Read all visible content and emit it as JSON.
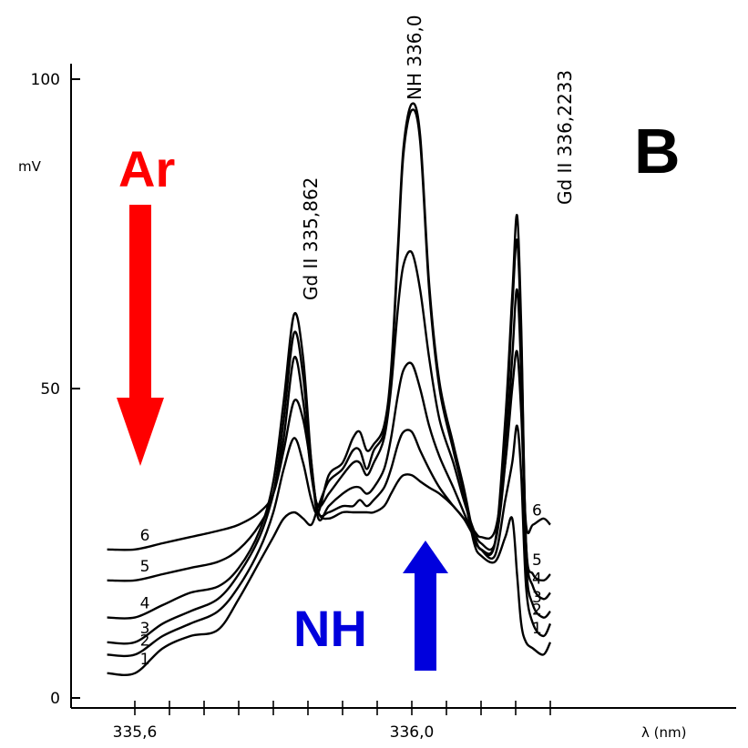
{
  "panel_letter": "B",
  "annotations": {
    "gas_label": "Ar",
    "gas_color": "#ff0000",
    "gas_arrow_direction": "down",
    "radical_label": "NH",
    "radical_color": "#0000dd",
    "radical_arrow_direction": "up"
  },
  "chart_data": {
    "type": "line",
    "title": "",
    "xlabel": "λ (nm)",
    "ylabel": "mV",
    "x_ticks": [
      "335,6",
      "336,0"
    ],
    "y_ticks": [
      "0",
      "50",
      "100"
    ],
    "xlim": [
      335.56,
      336.2
    ],
    "ylim": [
      -2,
      102
    ],
    "grid": false,
    "peak_labels": [
      "Gd II 335,862",
      "NH 336,0",
      "Gd II 336,2233"
    ],
    "series": [
      {
        "name": "1",
        "x": [
          335.56,
          335.6,
          335.64,
          335.68,
          335.72,
          335.75,
          335.78,
          335.8,
          335.815,
          335.83,
          335.843,
          335.855,
          335.865,
          335.88,
          335.9,
          335.915,
          335.925,
          335.935,
          335.945,
          335.96,
          335.97,
          335.98,
          335.988,
          336.0,
          336.012,
          336.025,
          336.04,
          336.06,
          336.075,
          336.09,
          336.1,
          336.12,
          336.135,
          336.145,
          336.152,
          336.158,
          336.165,
          336.175,
          336.19,
          336.2
        ],
        "y": [
          4,
          4,
          8,
          10,
          11,
          16,
          22,
          26,
          29,
          30,
          29,
          28,
          31,
          35,
          37,
          40,
          40,
          37,
          40,
          43,
          52,
          72,
          88,
          95,
          90,
          66,
          50,
          40,
          33,
          25,
          23,
          22,
          26,
          29,
          20,
          12,
          9,
          8,
          7,
          9
        ]
      },
      {
        "name": "2",
        "x": [
          335.56,
          335.6,
          335.64,
          335.68,
          335.72,
          335.75,
          335.78,
          335.8,
          335.815,
          335.83,
          335.843,
          335.855,
          335.865,
          335.88,
          335.9,
          335.915,
          335.925,
          335.935,
          335.945,
          335.96,
          335.97,
          335.98,
          335.988,
          336.0,
          336.012,
          336.025,
          336.04,
          336.06,
          336.075,
          336.09,
          336.1,
          336.12,
          336.135,
          336.145,
          336.152,
          336.158,
          336.165,
          336.175,
          336.19,
          336.2
        ],
        "y": [
          7,
          7,
          10,
          12,
          14,
          18,
          24,
          30,
          37,
          42,
          38,
          32,
          30,
          36,
          38,
          42,
          43,
          40,
          41,
          44,
          53,
          73,
          89,
          96,
          91,
          67,
          51,
          41,
          34,
          26,
          24,
          23,
          32,
          38,
          44,
          36,
          18,
          12,
          10,
          12
        ]
      },
      {
        "name": "3",
        "x": [
          335.56,
          335.6,
          335.64,
          335.68,
          335.72,
          335.75,
          335.78,
          335.8,
          335.815,
          335.83,
          335.843,
          335.855,
          335.865,
          335.88,
          335.9,
          335.915,
          335.925,
          335.935,
          335.945,
          335.96,
          335.97,
          335.98,
          335.988,
          336.0,
          336.012,
          336.025,
          336.04,
          336.06,
          336.075,
          336.09,
          336.1,
          336.12,
          336.135,
          336.145,
          336.152,
          336.158,
          336.165,
          336.175,
          336.19,
          336.2
        ],
        "y": [
          9,
          9,
          12,
          14,
          16,
          20,
          26,
          33,
          42,
          55,
          48,
          36,
          31,
          33,
          36,
          38,
          38,
          36,
          38,
          42,
          50,
          63,
          70,
          72,
          66,
          55,
          45,
          38,
          32,
          27,
          25,
          25,
          38,
          55,
          66,
          52,
          22,
          15,
          13,
          14
        ]
      },
      {
        "name": "4",
        "x": [
          335.56,
          335.6,
          335.64,
          335.68,
          335.72,
          335.75,
          335.78,
          335.8,
          335.815,
          335.83,
          335.843,
          335.855,
          335.865,
          335.88,
          335.9,
          335.915,
          335.925,
          335.935,
          335.945,
          335.96,
          335.97,
          335.98,
          335.988,
          336.0,
          336.012,
          336.025,
          336.04,
          336.06,
          336.075,
          336.09,
          336.1,
          336.12,
          336.135,
          336.145,
          336.152,
          336.158,
          336.165,
          336.175,
          336.19,
          336.2
        ],
        "y": [
          13,
          13,
          15,
          17,
          18,
          21,
          27,
          35,
          48,
          62,
          55,
          38,
          29,
          31,
          33,
          34,
          34,
          33,
          34,
          37,
          42,
          49,
          53,
          54,
          50,
          44,
          39,
          34,
          30,
          26,
          24,
          25,
          45,
          65,
          78,
          60,
          25,
          18,
          16,
          17
        ]
      },
      {
        "name": "5",
        "x": [
          335.56,
          335.6,
          335.64,
          335.68,
          335.72,
          335.75,
          335.78,
          335.8,
          335.815,
          335.83,
          335.843,
          335.855,
          335.865,
          335.88,
          335.9,
          335.915,
          335.925,
          335.935,
          335.945,
          335.96,
          335.97,
          335.98,
          335.988,
          336.0,
          336.012,
          336.025,
          336.04,
          336.06,
          336.075,
          336.09,
          336.1,
          336.12,
          336.135,
          336.145,
          336.152,
          336.158,
          336.165,
          336.175,
          336.19,
          336.2
        ],
        "y": [
          19,
          19,
          20,
          21,
          22,
          24,
          28,
          33,
          45,
          59,
          52,
          38,
          30,
          30,
          31,
          31,
          32,
          31,
          32,
          34,
          37,
          41,
          43,
          43,
          40,
          37,
          34,
          31,
          29,
          26,
          24,
          25,
          42,
          63,
          74,
          58,
          25,
          20,
          19,
          20
        ]
      },
      {
        "name": "6",
        "x": [
          335.56,
          335.6,
          335.64,
          335.68,
          335.72,
          335.75,
          335.78,
          335.8,
          335.815,
          335.83,
          335.843,
          335.855,
          335.865,
          335.88,
          335.9,
          335.915,
          335.925,
          335.935,
          335.945,
          335.96,
          335.97,
          335.98,
          335.988,
          336.0,
          336.012,
          336.025,
          336.04,
          336.06,
          336.075,
          336.09,
          336.1,
          336.12,
          336.135,
          336.145,
          336.152,
          336.158,
          336.165,
          336.175,
          336.19,
          336.2
        ],
        "y": [
          24,
          24,
          25,
          26,
          27,
          28,
          30,
          33,
          40,
          48,
          45,
          37,
          30,
          29,
          30,
          30,
          30,
          30,
          30,
          31,
          33,
          35,
          36,
          36,
          35,
          34,
          33,
          31,
          29,
          27,
          26,
          27,
          38,
          50,
          56,
          46,
          28,
          28,
          29,
          28
        ]
      }
    ]
  }
}
